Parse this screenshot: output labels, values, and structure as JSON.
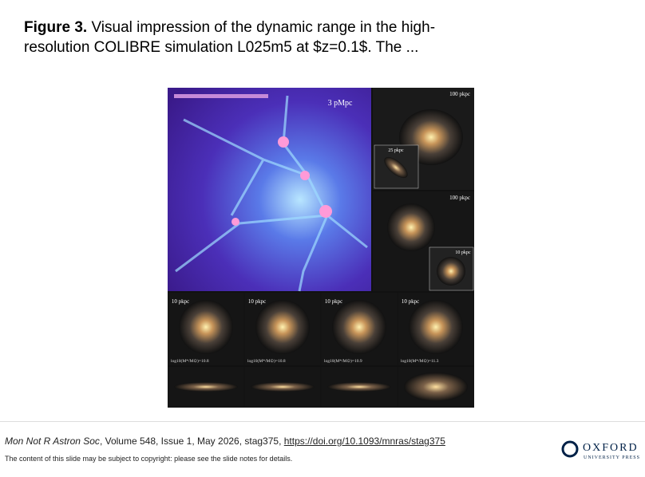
{
  "header": {
    "figure_label": "Figure 3.",
    "caption": "Visual impression of the dynamic range in the high-resolution COLIBRE simulation L025m5 at $z=0.1$. The ..."
  },
  "figure": {
    "main_scale": "3 pMpc",
    "zoom_scale_1": "100 pkpc",
    "zoom_scale_2": "100 pkpc",
    "inset_scale": "25 pkpc",
    "inset_scale_2": "10 pkpc",
    "galaxies": [
      {
        "scale": "10 pkpc",
        "mass": "log10(M*/M⊙)=10.8"
      },
      {
        "scale": "10 pkpc",
        "mass": "log10(M*/M⊙)=10.8"
      },
      {
        "scale": "10 pkpc",
        "mass": "log10(M*/M⊙)=10.9"
      },
      {
        "scale": "10 pkpc",
        "mass": "log10(M*/M⊙)=11.3"
      }
    ]
  },
  "footer": {
    "journal": "Mon Not R Astron Soc",
    "citation": ", Volume 548, Issue 1, May 2026, stag375, ",
    "doi": "https://doi.org/10.1093/mnras/stag375",
    "copyright": "The content of this slide may be subject to copyright: please see the slide notes for details.",
    "logo_name": "OXFORD",
    "logo_sub": "UNIVERSITY PRESS"
  }
}
